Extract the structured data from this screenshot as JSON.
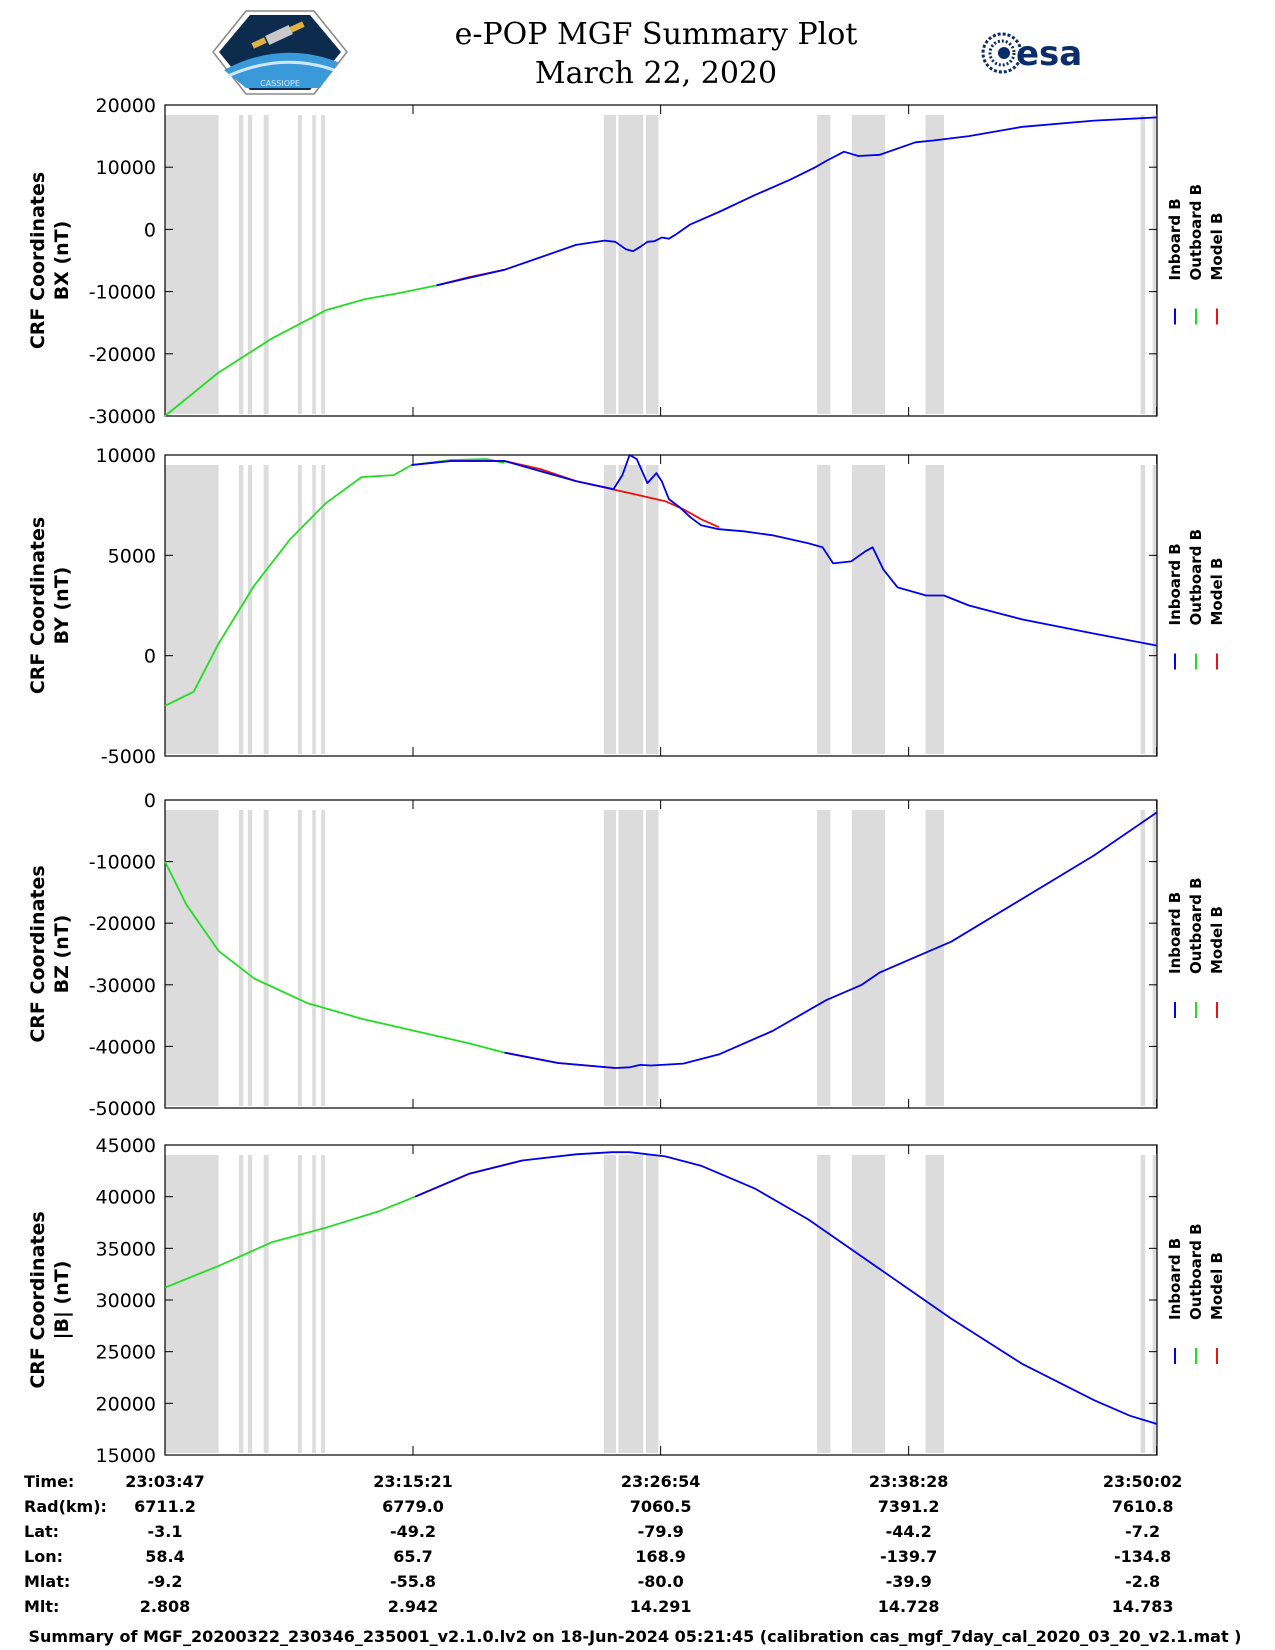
{
  "title": {
    "line1": "e-POP MGF Summary Plot",
    "line2": "March 22, 2020"
  },
  "logos": {
    "left_icon": "cassiope-mission-badge-icon",
    "left_text": "CASSIOPE",
    "right_icon": "esa-logo-icon",
    "right_text": "esa"
  },
  "colors": {
    "inboard": "#0000ee",
    "outboard": "#22dd22",
    "model": "#ee1111",
    "shade": "#dcdcdc"
  },
  "legend": {
    "inboard": "Inboard B",
    "outboard": "Outboard B",
    "model": "Model B"
  },
  "time_axis": {
    "start_s": 0,
    "end_s": 2776,
    "ticks_s": [
      0,
      694,
      1387,
      2081,
      2775
    ]
  },
  "shaded_intervals_s": [
    [
      0,
      150
    ],
    [
      207,
      219
    ],
    [
      232,
      244
    ],
    [
      276,
      290
    ],
    [
      372,
      383
    ],
    [
      412,
      422
    ],
    [
      437,
      448
    ],
    [
      1228,
      1262
    ],
    [
      1269,
      1338
    ],
    [
      1346,
      1381
    ],
    [
      1825,
      1862
    ],
    [
      1922,
      2015
    ],
    [
      2128,
      2180
    ],
    [
      2730,
      2743
    ],
    [
      2764,
      2776
    ]
  ],
  "chart_data": [
    {
      "type": "line",
      "ylabel_line1": "CRF Coordinates",
      "ylabel_line2": "BX (nT)",
      "ylim": [
        -30000,
        20000
      ],
      "yticks": [
        -30000,
        -20000,
        -10000,
        0,
        10000,
        20000
      ],
      "ytick_labels": [
        "-30000",
        "-20000",
        "-10000",
        "0",
        "10000",
        "20000"
      ],
      "series": [
        {
          "name": "Outboard B",
          "key": "outboard",
          "x": [
            0,
            150,
            300,
            450,
            560,
            660,
            760,
            850,
            950
          ],
          "y": [
            -30000,
            -23000,
            -17500,
            -13000,
            -11200,
            -10200,
            -9000,
            -7800,
            -6500
          ]
        },
        {
          "name": "Model B",
          "key": "model",
          "x": [
            760,
            850,
            950
          ],
          "y": [
            -9000,
            -7700,
            -6500
          ]
        },
        {
          "name": "Inboard B",
          "key": "inboard",
          "x": [
            760,
            850,
            950,
            1050,
            1150,
            1230,
            1260,
            1290,
            1310,
            1330,
            1350,
            1370,
            1390,
            1410,
            1430,
            1470,
            1550,
            1650,
            1750,
            1820,
            1850,
            1900,
            1940,
            2000,
            2100,
            2150,
            2250,
            2400,
            2600,
            2776
          ],
          "y": [
            -9000,
            -7800,
            -6500,
            -4500,
            -2500,
            -1800,
            -2000,
            -3200,
            -3500,
            -2800,
            -2000,
            -1900,
            -1300,
            -1500,
            -800,
            800,
            2800,
            5500,
            8000,
            10000,
            11000,
            12500,
            11800,
            12000,
            14000,
            14300,
            15000,
            16500,
            17500,
            18000
          ]
        }
      ]
    },
    {
      "type": "line",
      "ylabel_line1": "CRF Coordinates",
      "ylabel_line2": "BY (nT)",
      "ylim": [
        -5000,
        10000
      ],
      "yticks": [
        -5000,
        0,
        5000,
        10000
      ],
      "ytick_labels": [
        "-5000",
        "0",
        "5000",
        "10000"
      ],
      "series": [
        {
          "name": "Outboard B",
          "key": "outboard",
          "x": [
            0,
            80,
            150,
            250,
            350,
            450,
            550,
            640,
            690,
            800,
            900,
            950
          ],
          "y": [
            -2500,
            -1800,
            600,
            3500,
            5800,
            7600,
            8900,
            9000,
            9500,
            9750,
            9800,
            9600
          ]
        },
        {
          "name": "Model B",
          "key": "model",
          "x": [
            690,
            800,
            950,
            1050,
            1150,
            1250,
            1400,
            1450,
            1500,
            1550
          ],
          "y": [
            9500,
            9700,
            9700,
            9300,
            8700,
            8300,
            7700,
            7300,
            6800,
            6400
          ]
        },
        {
          "name": "Inboard B",
          "key": "inboard",
          "x": [
            690,
            800,
            950,
            1050,
            1150,
            1255,
            1280,
            1300,
            1320,
            1350,
            1375,
            1390,
            1410,
            1440,
            1470,
            1500,
            1550,
            1620,
            1700,
            1800,
            1840,
            1870,
            1920,
            1960,
            1980,
            2010,
            2050,
            2130,
            2180,
            2250,
            2400,
            2600,
            2776
          ],
          "y": [
            9500,
            9700,
            9700,
            9200,
            8700,
            8300,
            9000,
            10000,
            9800,
            8600,
            9100,
            8700,
            7800,
            7400,
            6900,
            6500,
            6300,
            6200,
            6000,
            5600,
            5400,
            4600,
            4700,
            5200,
            5400,
            4300,
            3400,
            3000,
            3000,
            2500,
            1800,
            1100,
            500
          ]
        }
      ]
    },
    {
      "type": "line",
      "ylabel_line1": "CRF Coordinates",
      "ylabel_line2": "BZ (nT)",
      "ylim": [
        -50000,
        0
      ],
      "yticks": [
        -50000,
        -40000,
        -30000,
        -20000,
        -10000,
        0
      ],
      "ytick_labels": [
        "-50000",
        "-40000",
        "-30000",
        "-20000",
        "-10000",
        "0"
      ],
      "series": [
        {
          "name": "Outboard B",
          "key": "outboard",
          "x": [
            0,
            60,
            150,
            250,
            400,
            550,
            700,
            850,
            950
          ],
          "y": [
            -10000,
            -17000,
            -24500,
            -29000,
            -33000,
            -35500,
            -37500,
            -39500,
            -41000
          ]
        },
        {
          "name": "Model B",
          "key": "model",
          "x": [
            950,
            1100,
            1260
          ],
          "y": [
            -41000,
            -42700,
            -43500
          ]
        },
        {
          "name": "Inboard B",
          "key": "inboard",
          "x": [
            950,
            1100,
            1260,
            1300,
            1330,
            1360,
            1390,
            1450,
            1550,
            1700,
            1850,
            1950,
            2000,
            2100,
            2200,
            2400,
            2600,
            2776
          ],
          "y": [
            -41000,
            -42700,
            -43500,
            -43400,
            -43000,
            -43100,
            -43000,
            -42800,
            -41300,
            -37500,
            -32500,
            -30000,
            -28000,
            -25500,
            -23000,
            -16000,
            -9000,
            -2000
          ]
        }
      ]
    },
    {
      "type": "line",
      "ylabel_line1": "CRF Coordinates",
      "ylabel_line2": "|B| (nT)",
      "ylim": [
        15000,
        45000
      ],
      "yticks": [
        15000,
        20000,
        25000,
        30000,
        35000,
        40000,
        45000
      ],
      "ytick_labels": [
        "15000",
        "20000",
        "25000",
        "30000",
        "35000",
        "40000",
        "45000"
      ],
      "series": [
        {
          "name": "Outboard B",
          "key": "outboard",
          "x": [
            0,
            150,
            300,
            450,
            600,
            700
          ],
          "y": [
            31200,
            33300,
            35600,
            37000,
            38600,
            40000
          ]
        },
        {
          "name": "Model B",
          "key": "model",
          "x": [
            700,
            850,
            1000
          ],
          "y": [
            40000,
            42200,
            43500
          ]
        },
        {
          "name": "Inboard B",
          "key": "inboard",
          "x": [
            700,
            850,
            1000,
            1150,
            1250,
            1300,
            1400,
            1500,
            1650,
            1800,
            2000,
            2200,
            2400,
            2600,
            2700,
            2776
          ],
          "y": [
            40000,
            42200,
            43500,
            44100,
            44300,
            44300,
            43900,
            43000,
            40800,
            37800,
            33000,
            28200,
            23800,
            20300,
            18800,
            18000
          ]
        }
      ]
    }
  ],
  "ephemeris": {
    "labels": [
      "Time:",
      "Rad(km):",
      "Lat:",
      "Lon:",
      "Mlat:",
      "Mlt:"
    ],
    "columns": [
      [
        "23:03:47",
        "6711.2",
        "-3.1",
        "58.4",
        "-9.2",
        "2.808"
      ],
      [
        "23:15:21",
        "6779.0",
        "-49.2",
        "65.7",
        "-55.8",
        "2.942"
      ],
      [
        "23:26:54",
        "7060.5",
        "-79.9",
        "168.9",
        "-80.0",
        "14.291"
      ],
      [
        "23:38:28",
        "7391.2",
        "-44.2",
        "-139.7",
        "-39.9",
        "14.728"
      ],
      [
        "23:50:02",
        "7610.8",
        "-7.2",
        "-134.8",
        "-2.8",
        "14.783"
      ]
    ]
  },
  "footer": "Summary of MGF_20200322_230346_235001_v2.1.0.lv2 on 18-Jun-2024 05:21:45 (calibration cas_mgf_7day_cal_2020_03_20_v2.1.mat )"
}
